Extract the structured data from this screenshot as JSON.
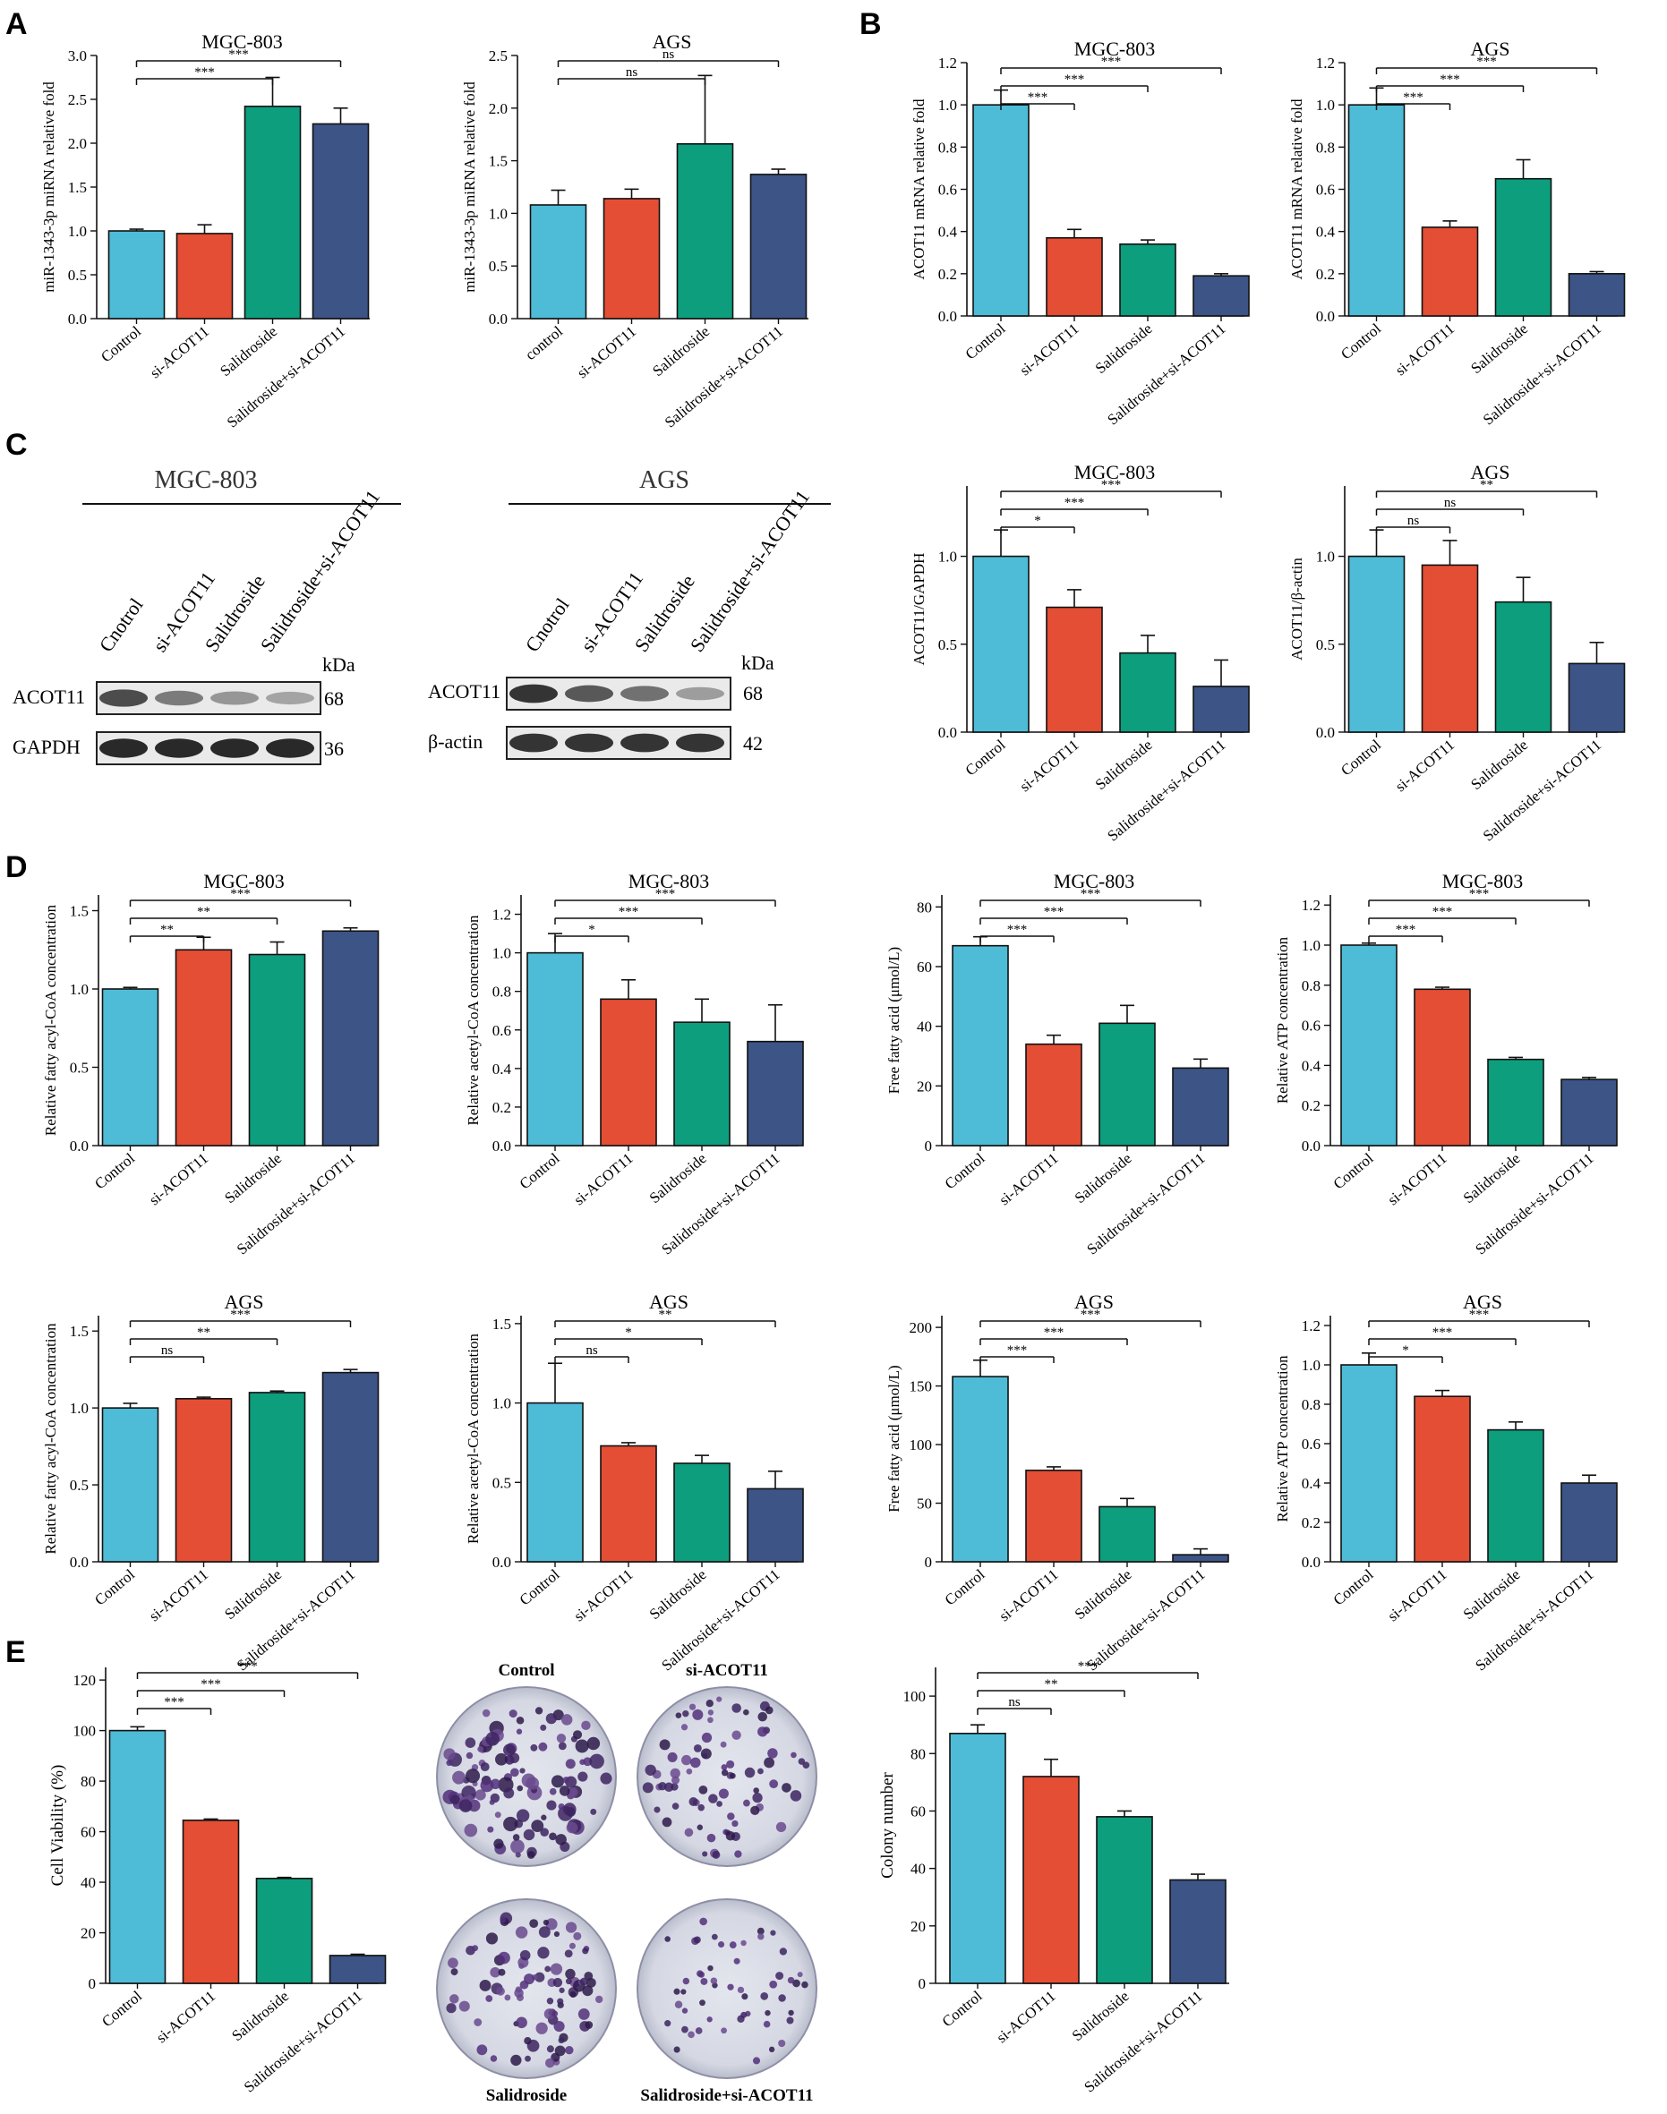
{
  "panels": [
    {
      "label": "A"
    },
    {
      "label": "B"
    },
    {
      "label": "C"
    },
    {
      "label": "D"
    },
    {
      "label": "E"
    }
  ],
  "bar_colors": [
    "#4ebcd6",
    "#e44e34",
    "#0d9e7e",
    "#3c5486"
  ],
  "western_blot": [
    {
      "cell": "MGC-803",
      "lanes": [
        "Cnotrol",
        "si-ACOT11",
        "Salidroside",
        "Salidroside+si-ACOT11"
      ],
      "kda_label": "kDa",
      "bands": [
        {
          "name": "ACOT11",
          "kda": "68",
          "intensity": [
            0.78,
            0.55,
            0.42,
            0.35
          ]
        },
        {
          "name": "GAPDH",
          "kda": "36",
          "intensity": [
            0.95,
            0.95,
            0.95,
            0.95
          ]
        }
      ]
    },
    {
      "cell": "AGS",
      "lanes": [
        "Cnotrol",
        "si-ACOT11",
        "Salidroside",
        "Salidroside+si-ACOT11"
      ],
      "kda_label": "kDa",
      "bands": [
        {
          "name": "ACOT11",
          "kda": "68",
          "intensity": [
            0.9,
            0.72,
            0.6,
            0.38
          ]
        },
        {
          "name": "β-actin",
          "kda": "42",
          "intensity": [
            0.9,
            0.9,
            0.9,
            0.9
          ]
        }
      ]
    }
  ],
  "colony_images": {
    "labels": [
      "Control",
      "si-ACOT11",
      "Salidroside",
      "Salidroside+si-ACOT11"
    ],
    "density": [
      0.95,
      0.55,
      0.65,
      0.25
    ]
  },
  "chart_data": [
    {
      "type": "bar",
      "title": "MGC-803",
      "ylabel": "miR-1343-3p miRNA relative fold",
      "categories": [
        "Control",
        "si-ACOT11",
        "Salidroside",
        "Salidroside+si-ACOT11"
      ],
      "values": [
        1.0,
        0.97,
        2.42,
        2.22
      ],
      "errors": [
        0.02,
        0.1,
        0.33,
        0.18
      ],
      "ylim": [
        0,
        3.0
      ],
      "yticks": [
        "0.0",
        "0.5",
        "1.0",
        "1.5",
        "2.0",
        "2.5",
        "3.0"
      ],
      "significance": [
        {
          "to": 2,
          "label": "***"
        },
        {
          "to": 3,
          "label": "***"
        }
      ]
    },
    {
      "type": "bar",
      "title": "AGS",
      "ylabel": "miR-1343-3p miRNA relative fold",
      "categories": [
        "control",
        "si-ACOT11",
        "Salidroside",
        "Salidroside+si-ACOT11"
      ],
      "values": [
        1.08,
        1.14,
        1.66,
        1.37
      ],
      "errors": [
        0.14,
        0.09,
        0.65,
        0.05
      ],
      "ylim": [
        0,
        2.5
      ],
      "yticks": [
        "0.0",
        "0.5",
        "1.0",
        "1.5",
        "2.0",
        "2.5"
      ],
      "significance": [
        {
          "to": 2,
          "label": "ns"
        },
        {
          "to": 3,
          "label": "ns"
        }
      ]
    },
    {
      "type": "bar",
      "title": "MGC-803",
      "ylabel": "ACOT11 mRNA relative fold",
      "categories": [
        "Control",
        "si-ACOT11",
        "Salidroside",
        "Salidroside+si-ACOT11"
      ],
      "values": [
        1.0,
        0.37,
        0.34,
        0.19
      ],
      "errors": [
        0.07,
        0.04,
        0.02,
        0.01
      ],
      "ylim": [
        0,
        1.2
      ],
      "yticks": [
        "0.0",
        "0.2",
        "0.4",
        "0.6",
        "0.8",
        "1.0",
        "1.2"
      ],
      "significance": [
        {
          "to": 1,
          "label": "***"
        },
        {
          "to": 2,
          "label": "***"
        },
        {
          "to": 3,
          "label": "***"
        }
      ]
    },
    {
      "type": "bar",
      "title": "AGS",
      "ylabel": "ACOT11 mRNA relative fold",
      "categories": [
        "Control",
        "si-ACOT11",
        "Salidroside",
        "Salidroside+si-ACOT11"
      ],
      "values": [
        1.0,
        0.42,
        0.65,
        0.2
      ],
      "errors": [
        0.08,
        0.03,
        0.09,
        0.01
      ],
      "ylim": [
        0,
        1.2
      ],
      "yticks": [
        "0.0",
        "0.2",
        "0.4",
        "0.6",
        "0.8",
        "1.0",
        "1.2"
      ],
      "significance": [
        {
          "to": 1,
          "label": "***"
        },
        {
          "to": 2,
          "label": "***"
        },
        {
          "to": 3,
          "label": "***"
        }
      ]
    },
    {
      "type": "bar",
      "title": "MGC-803",
      "ylabel": "ACOT11/GAPDH",
      "categories": [
        "Control",
        "si-ACOT11",
        "Salidroside",
        "Salidroside+si-ACOT11"
      ],
      "values": [
        1.0,
        0.71,
        0.45,
        0.26
      ],
      "errors": [
        0.15,
        0.1,
        0.1,
        0.15
      ],
      "ylim": [
        0,
        1.4
      ],
      "yticks": [
        "0.0",
        "0.5",
        "1.0"
      ],
      "significance": [
        {
          "to": 1,
          "label": "*"
        },
        {
          "to": 2,
          "label": "***"
        },
        {
          "to": 3,
          "label": "***"
        }
      ]
    },
    {
      "type": "bar",
      "title": "AGS",
      "ylabel": "ACOT11/β-actin",
      "categories": [
        "Control",
        "si-ACOT11",
        "Salidroside",
        "Salidroside+si-ACOT11"
      ],
      "values": [
        1.0,
        0.95,
        0.74,
        0.39
      ],
      "errors": [
        0.15,
        0.14,
        0.14,
        0.12
      ],
      "ylim": [
        0,
        1.4
      ],
      "yticks": [
        "0.0",
        "0.5",
        "1.0"
      ],
      "significance": [
        {
          "to": 1,
          "label": "ns"
        },
        {
          "to": 2,
          "label": "ns"
        },
        {
          "to": 3,
          "label": "**"
        }
      ]
    },
    {
      "type": "bar",
      "title": "MGC-803",
      "ylabel": "Relative fatty acyl-CoA concentration",
      "categories": [
        "Control",
        "si-ACOT11",
        "Salidroside",
        "Salidroside+si-ACOT11"
      ],
      "values": [
        1.0,
        1.25,
        1.22,
        1.37
      ],
      "errors": [
        0.01,
        0.08,
        0.08,
        0.02
      ],
      "ylim": [
        0,
        1.6
      ],
      "yticks": [
        "0.0",
        "0.5",
        "1.0",
        "1.5"
      ],
      "significance": [
        {
          "to": 1,
          "label": "**"
        },
        {
          "to": 2,
          "label": "**"
        },
        {
          "to": 3,
          "label": "***"
        }
      ]
    },
    {
      "type": "bar",
      "title": "MGC-803",
      "ylabel": "Relative acetyl-CoA concentration",
      "categories": [
        "Control",
        "si-ACOT11",
        "Salidroside",
        "Salidroside+si-ACOT11"
      ],
      "values": [
        1.0,
        0.76,
        0.64,
        0.54
      ],
      "errors": [
        0.1,
        0.1,
        0.12,
        0.19
      ],
      "ylim": [
        0,
        1.3
      ],
      "yticks": [
        "0.0",
        "0.2",
        "0.4",
        "0.6",
        "0.8",
        "1.0",
        "1.2"
      ],
      "significance": [
        {
          "to": 1,
          "label": "*"
        },
        {
          "to": 2,
          "label": "***"
        },
        {
          "to": 3,
          "label": "***"
        }
      ]
    },
    {
      "type": "bar",
      "title": "MGC-803",
      "ylabel": "Free fatty acid (μmol/L)",
      "categories": [
        "Control",
        "si-ACOT11",
        "Salidroside",
        "Salidroside+si-ACOT11"
      ],
      "values": [
        67,
        34,
        41,
        26
      ],
      "errors": [
        3,
        3,
        6,
        3
      ],
      "ylim": [
        0,
        84
      ],
      "yticks": [
        "0",
        "20",
        "40",
        "60",
        "80"
      ],
      "significance": [
        {
          "to": 1,
          "label": "***"
        },
        {
          "to": 2,
          "label": "***"
        },
        {
          "to": 3,
          "label": "***"
        }
      ]
    },
    {
      "type": "bar",
      "title": "MGC-803",
      "ylabel": "Relative ATP concentration",
      "categories": [
        "Control",
        "si-ACOT11",
        "Salidroside",
        "Salidroside+si-ACOT11"
      ],
      "values": [
        1.0,
        0.78,
        0.43,
        0.33
      ],
      "errors": [
        0.01,
        0.01,
        0.01,
        0.01
      ],
      "ylim": [
        0,
        1.25
      ],
      "yticks": [
        "0.0",
        "0.2",
        "0.4",
        "0.6",
        "0.8",
        "1.0",
        "1.2"
      ],
      "significance": [
        {
          "to": 1,
          "label": "***"
        },
        {
          "to": 2,
          "label": "***"
        },
        {
          "to": 3,
          "label": "***"
        }
      ]
    },
    {
      "type": "bar",
      "title": "AGS",
      "ylabel": "Relative fatty acyl-CoA concentration",
      "categories": [
        "Control",
        "si-ACOT11",
        "Salidroside",
        "Salidroside+si-ACOT11"
      ],
      "values": [
        1.0,
        1.06,
        1.1,
        1.23
      ],
      "errors": [
        0.03,
        0.01,
        0.01,
        0.02
      ],
      "ylim": [
        0,
        1.6
      ],
      "yticks": [
        "0.0",
        "0.5",
        "1.0",
        "1.5"
      ],
      "significance": [
        {
          "to": 1,
          "label": "ns"
        },
        {
          "to": 2,
          "label": "**"
        },
        {
          "to": 3,
          "label": "***"
        }
      ]
    },
    {
      "type": "bar",
      "title": "AGS",
      "ylabel": "Relative acetyl-CoA concentration",
      "categories": [
        "Control",
        "si-ACOT11",
        "Salidroside",
        "Salidroside+si-ACOT11"
      ],
      "values": [
        1.0,
        0.73,
        0.62,
        0.46
      ],
      "errors": [
        0.25,
        0.02,
        0.05,
        0.11
      ],
      "ylim": [
        0,
        1.55
      ],
      "yticks": [
        "0.0",
        "0.5",
        "1.0",
        "1.5"
      ],
      "significance": [
        {
          "to": 1,
          "label": "ns"
        },
        {
          "to": 2,
          "label": "*"
        },
        {
          "to": 3,
          "label": "**"
        }
      ]
    },
    {
      "type": "bar",
      "title": "AGS",
      "ylabel": "Free fatty acid (μmol/L)",
      "categories": [
        "Control",
        "si-ACOT11",
        "Salidroside",
        "Salidroside+si-ACOT11"
      ],
      "values": [
        158,
        78,
        47,
        6
      ],
      "errors": [
        14,
        3,
        7,
        5
      ],
      "ylim": [
        0,
        210
      ],
      "yticks": [
        "0",
        "50",
        "100",
        "150",
        "200"
      ],
      "significance": [
        {
          "to": 1,
          "label": "***"
        },
        {
          "to": 2,
          "label": "***"
        },
        {
          "to": 3,
          "label": "***"
        }
      ]
    },
    {
      "type": "bar",
      "title": "AGS",
      "ylabel": "Relative ATP concentration",
      "categories": [
        "Control",
        "si-ACOT11",
        "Salidroside",
        "Salidroside+si-ACOT11"
      ],
      "values": [
        1.0,
        0.84,
        0.67,
        0.4
      ],
      "errors": [
        0.06,
        0.03,
        0.04,
        0.04
      ],
      "ylim": [
        0,
        1.25
      ],
      "yticks": [
        "0.0",
        "0.2",
        "0.4",
        "0.6",
        "0.8",
        "1.0",
        "1.2"
      ],
      "significance": [
        {
          "to": 1,
          "label": "*"
        },
        {
          "to": 2,
          "label": "***"
        },
        {
          "to": 3,
          "label": "***"
        }
      ]
    },
    {
      "type": "bar",
      "title": "",
      "ylabel": "Cell Viability (%)",
      "categories": [
        "Control",
        "si-ACOT11",
        "Salidroside",
        "Salidroside+si-ACOT11"
      ],
      "values": [
        100,
        64.5,
        41.5,
        11
      ],
      "errors": [
        1.5,
        0.5,
        0.4,
        0.5
      ],
      "ylim": [
        0,
        125
      ],
      "yticks": [
        "0",
        "20",
        "40",
        "60",
        "80",
        "100",
        "120"
      ],
      "significance": [
        {
          "to": 1,
          "label": "***"
        },
        {
          "to": 2,
          "label": "***"
        },
        {
          "to": 3,
          "label": "***"
        }
      ]
    },
    {
      "type": "bar",
      "title": "",
      "ylabel": "Colony number",
      "categories": [
        "Control",
        "si-ACOT11",
        "Salidroside",
        "Salidroside+si-ACOT11"
      ],
      "values": [
        87,
        72,
        58,
        36
      ],
      "errors": [
        3,
        6,
        2,
        2
      ],
      "ylim": [
        0,
        110
      ],
      "yticks": [
        "0",
        "20",
        "40",
        "60",
        "80",
        "100"
      ],
      "significance": [
        {
          "to": 1,
          "label": "ns"
        },
        {
          "to": 2,
          "label": "**"
        },
        {
          "to": 3,
          "label": "***"
        }
      ]
    }
  ]
}
